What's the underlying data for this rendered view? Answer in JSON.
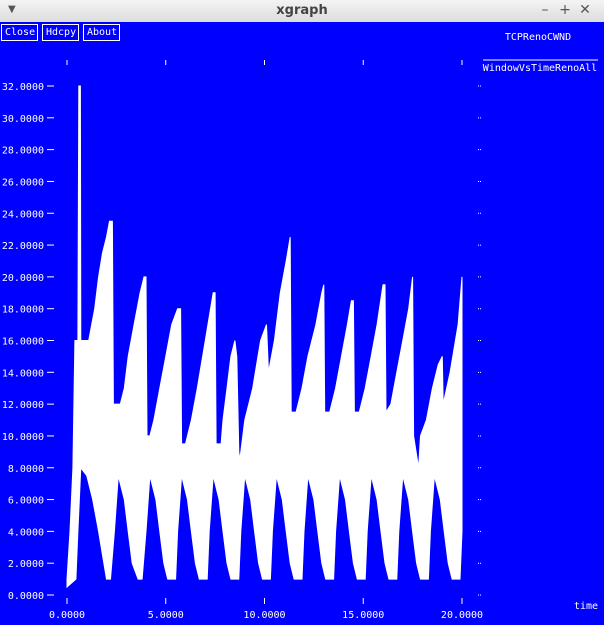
{
  "window": {
    "title": "xgraph",
    "menu_icon": "chevron-down-icon",
    "buttons": [
      "minimize-icon",
      "maximize-icon",
      "close-icon"
    ]
  },
  "toolbar": {
    "close_label": "Close",
    "hdcpy_label": "Hdcpy",
    "about_label": "About"
  },
  "colors": {
    "background": "#0000ff",
    "foreground": "#ffffff"
  },
  "chart_data": {
    "type": "area",
    "title": "TCPRenoCWND",
    "xlabel": "time",
    "ylabel": "",
    "xlim": [
      0,
      20
    ],
    "ylim": [
      0,
      32
    ],
    "x_ticks": [
      "0.0000",
      "5.0000",
      "10.0000",
      "15.0000",
      "20.0000"
    ],
    "y_ticks": [
      "0.0000",
      "2.0000",
      "4.0000",
      "6.0000",
      "8.0000",
      "10.0000",
      "12.0000",
      "14.0000",
      "16.0000",
      "18.0000",
      "20.0000",
      "22.0000",
      "24.0000",
      "26.0000",
      "28.0000",
      "30.0000",
      "32.0000"
    ],
    "grid": false,
    "legend_position": "top-right",
    "series": [
      {
        "name": "WindowVsTimeRenoAll",
        "upper": [
          [
            0.0,
            1
          ],
          [
            0.05,
            2
          ],
          [
            0.15,
            4
          ],
          [
            0.3,
            8
          ],
          [
            0.4,
            16
          ],
          [
            0.55,
            16
          ],
          [
            0.6,
            32
          ],
          [
            0.68,
            32
          ],
          [
            0.7,
            16
          ],
          [
            0.85,
            16
          ],
          [
            1.0,
            16
          ],
          [
            1.1,
            16
          ],
          [
            1.25,
            17
          ],
          [
            1.4,
            18
          ],
          [
            1.6,
            20
          ],
          [
            1.8,
            21.5
          ],
          [
            2.0,
            22.5
          ],
          [
            2.15,
            23.5
          ],
          [
            2.3,
            23.5
          ],
          [
            2.35,
            12
          ],
          [
            2.7,
            12
          ],
          [
            2.9,
            13
          ],
          [
            3.1,
            15
          ],
          [
            3.4,
            17
          ],
          [
            3.7,
            19
          ],
          [
            3.9,
            20
          ],
          [
            4.0,
            20
          ],
          [
            4.05,
            10
          ],
          [
            4.2,
            10
          ],
          [
            4.4,
            11
          ],
          [
            4.7,
            13
          ],
          [
            5.0,
            15
          ],
          [
            5.3,
            17
          ],
          [
            5.6,
            18
          ],
          [
            5.75,
            18
          ],
          [
            5.8,
            9.5
          ],
          [
            6.0,
            9.5
          ],
          [
            6.3,
            11
          ],
          [
            6.6,
            13
          ],
          [
            7.0,
            16
          ],
          [
            7.4,
            19
          ],
          [
            7.5,
            19
          ],
          [
            7.55,
            9.5
          ],
          [
            7.8,
            9.5
          ],
          [
            7.9,
            11
          ],
          [
            8.1,
            13
          ],
          [
            8.3,
            15
          ],
          [
            8.5,
            16
          ],
          [
            8.6,
            15
          ],
          [
            8.7,
            9
          ],
          [
            8.75,
            8.5
          ],
          [
            9.0,
            11
          ],
          [
            9.4,
            13
          ],
          [
            9.8,
            16
          ],
          [
            10.1,
            17
          ],
          [
            10.2,
            14
          ],
          [
            10.5,
            16
          ],
          [
            10.8,
            19
          ],
          [
            11.1,
            21
          ],
          [
            11.3,
            22.5
          ],
          [
            11.35,
            11.5
          ],
          [
            11.6,
            11.5
          ],
          [
            11.9,
            13
          ],
          [
            12.2,
            15
          ],
          [
            12.6,
            17
          ],
          [
            12.9,
            19
          ],
          [
            13.0,
            19.5
          ],
          [
            13.05,
            11.5
          ],
          [
            13.3,
            11.5
          ],
          [
            13.6,
            13
          ],
          [
            13.9,
            15
          ],
          [
            14.2,
            17
          ],
          [
            14.4,
            18.5
          ],
          [
            14.5,
            18.5
          ],
          [
            14.55,
            11.5
          ],
          [
            14.8,
            11.5
          ],
          [
            15.1,
            13
          ],
          [
            15.4,
            15
          ],
          [
            15.7,
            17
          ],
          [
            16.0,
            19.5
          ],
          [
            16.1,
            19.5
          ],
          [
            16.15,
            11.5
          ],
          [
            16.4,
            12
          ],
          [
            16.7,
            14
          ],
          [
            17.0,
            16
          ],
          [
            17.3,
            18
          ],
          [
            17.5,
            20
          ],
          [
            17.55,
            10
          ],
          [
            17.8,
            8
          ],
          [
            17.9,
            10
          ],
          [
            18.2,
            11
          ],
          [
            18.5,
            13
          ],
          [
            18.8,
            14.5
          ],
          [
            19.0,
            15
          ],
          [
            19.05,
            12
          ],
          [
            19.4,
            14
          ],
          [
            19.8,
            17
          ],
          [
            20.0,
            20
          ]
        ],
        "lower": [
          [
            0.0,
            0.5
          ],
          [
            0.45,
            1
          ],
          [
            0.55,
            4
          ],
          [
            0.7,
            8
          ],
          [
            1.0,
            7.5
          ],
          [
            1.3,
            6
          ],
          [
            1.6,
            4
          ],
          [
            1.8,
            2.5
          ],
          [
            2.0,
            1
          ],
          [
            2.2,
            1
          ],
          [
            2.4,
            4
          ],
          [
            2.6,
            7.5
          ],
          [
            2.9,
            6
          ],
          [
            3.1,
            4
          ],
          [
            3.3,
            2
          ],
          [
            3.6,
            1
          ],
          [
            3.8,
            1
          ],
          [
            4.0,
            4
          ],
          [
            4.2,
            7.5
          ],
          [
            4.5,
            6
          ],
          [
            4.7,
            4
          ],
          [
            4.9,
            2
          ],
          [
            5.1,
            1
          ],
          [
            5.5,
            1
          ],
          [
            5.6,
            4
          ],
          [
            5.8,
            7.5
          ],
          [
            6.1,
            6
          ],
          [
            6.3,
            4
          ],
          [
            6.5,
            2
          ],
          [
            6.7,
            1
          ],
          [
            7.1,
            1
          ],
          [
            7.2,
            4
          ],
          [
            7.4,
            7.5
          ],
          [
            7.7,
            6
          ],
          [
            7.9,
            4
          ],
          [
            8.1,
            2
          ],
          [
            8.3,
            1
          ],
          [
            8.7,
            1
          ],
          [
            8.8,
            4
          ],
          [
            9.0,
            7.5
          ],
          [
            9.3,
            6
          ],
          [
            9.5,
            4
          ],
          [
            9.7,
            2
          ],
          [
            9.9,
            1
          ],
          [
            10.3,
            1
          ],
          [
            10.4,
            4
          ],
          [
            10.6,
            7.5
          ],
          [
            10.9,
            6
          ],
          [
            11.1,
            4
          ],
          [
            11.3,
            2
          ],
          [
            11.5,
            1
          ],
          [
            11.9,
            1
          ],
          [
            12.0,
            4
          ],
          [
            12.2,
            7.5
          ],
          [
            12.5,
            6
          ],
          [
            12.7,
            4
          ],
          [
            12.9,
            2
          ],
          [
            13.1,
            1
          ],
          [
            13.5,
            1
          ],
          [
            13.6,
            4
          ],
          [
            13.8,
            7.5
          ],
          [
            14.1,
            6
          ],
          [
            14.3,
            4
          ],
          [
            14.5,
            2
          ],
          [
            14.7,
            1
          ],
          [
            15.1,
            1
          ],
          [
            15.2,
            4
          ],
          [
            15.4,
            7.5
          ],
          [
            15.7,
            6
          ],
          [
            15.9,
            4
          ],
          [
            16.1,
            2
          ],
          [
            16.3,
            1
          ],
          [
            16.7,
            1
          ],
          [
            16.8,
            4
          ],
          [
            17.0,
            7.5
          ],
          [
            17.3,
            6
          ],
          [
            17.5,
            4
          ],
          [
            17.7,
            2
          ],
          [
            17.9,
            1
          ],
          [
            18.3,
            1
          ],
          [
            18.4,
            4
          ],
          [
            18.6,
            7.5
          ],
          [
            18.9,
            6
          ],
          [
            19.1,
            4
          ],
          [
            19.3,
            2
          ],
          [
            19.5,
            1
          ],
          [
            19.9,
            1
          ],
          [
            20.0,
            4
          ]
        ]
      }
    ]
  }
}
